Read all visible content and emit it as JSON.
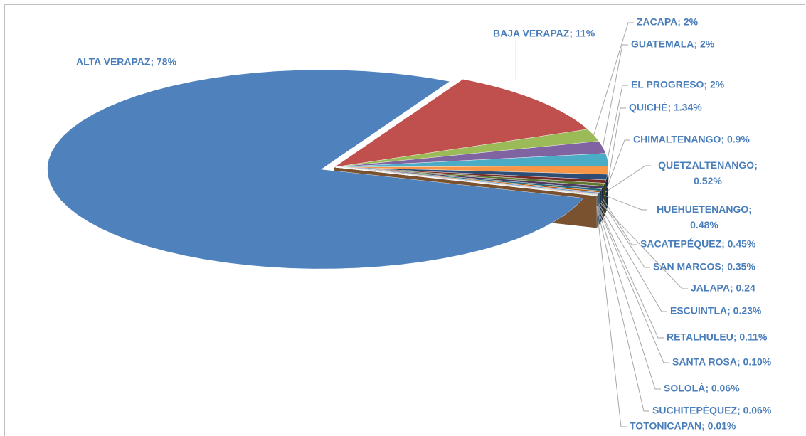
{
  "chart_data": {
    "type": "pie",
    "values": [
      78,
      11,
      2,
      2,
      2,
      1.34,
      0.9,
      0.52,
      0.48,
      0.45,
      0.35,
      0.24,
      0.23,
      0.11,
      0.1,
      0.06,
      0.06,
      0.01
    ],
    "value_labels": [
      "ALTA VERAPAZ; 78%",
      "BAJA VERAPAZ; 11%",
      "ZACAPA; 2%",
      "GUATEMALA; 2%",
      "EL PROGRESO; 2%",
      "QUICHÉ; 1.34%",
      "CHIMALTENANGO; 0.9%",
      "QUETZALTENANGO; 0.52%",
      "HUEHUETENANGO; 0.48%",
      "SACATEPÉQUEZ; 0.45%",
      "SAN MARCOS; 0.35%",
      "JALAPA; 0.24",
      "ESCUINTLA; 0.23%",
      "RETALHULEU; 0.11%",
      "SANTA ROSA; 0.10%",
      "SOLOLÁ; 0.06%",
      "SUCHITEPÉQUEZ; 0.06%",
      "TOTONICAPAN; 0.01%"
    ],
    "colors": [
      "#4f81bd",
      "#c0504d",
      "#9bbb59",
      "#8064a2",
      "#4bacc6",
      "#f79646",
      "#2c4d75",
      "#772c2a",
      "#5f7530",
      "#4d3b62",
      "#276a7c",
      "#b65708",
      "#729aca",
      "#cd7371",
      "#afc97a",
      "#9983b5",
      "#6fbdd1",
      "#f9ab6b"
    ]
  }
}
